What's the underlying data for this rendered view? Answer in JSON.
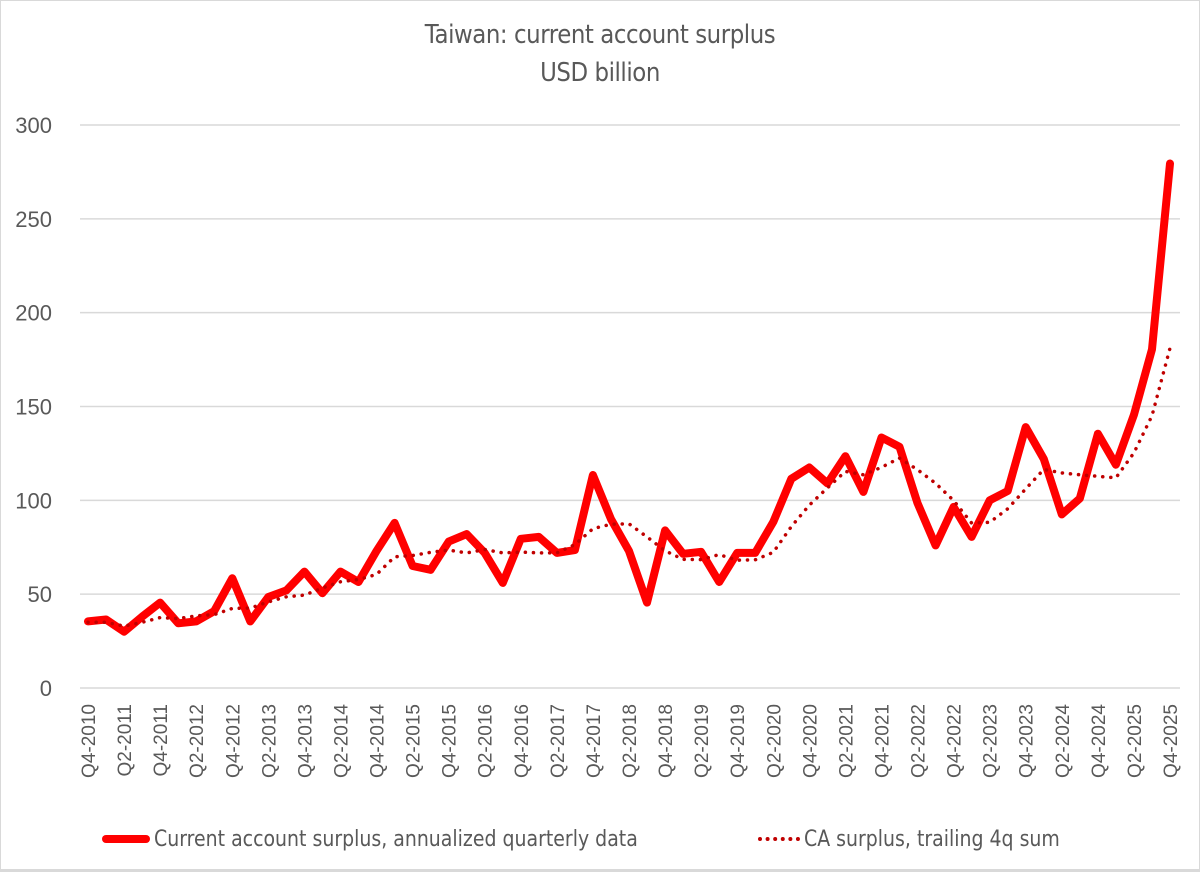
{
  "chart": {
    "title_line1": "Taiwan: current account surplus",
    "title_line2": "USD billion",
    "y_ticks": [
      "0",
      "50",
      "100",
      "150",
      "200",
      "250",
      "300"
    ],
    "x_tick_labels": [
      "Q4-2010",
      "Q2-2011",
      "Q4-2011",
      "Q2-2012",
      "Q4-2012",
      "Q2-2013",
      "Q4-2013",
      "Q2-2014",
      "Q4-2014",
      "Q2-2015",
      "Q4-2015",
      "Q2-2016",
      "Q4-2016",
      "Q2-2017",
      "Q4-2017",
      "Q2-2018",
      "Q4-2018",
      "Q2-2019",
      "Q4-2019",
      "Q2-2020",
      "Q4-2020",
      "Q2-2021",
      "Q4-2021",
      "Q2-2022",
      "Q4-2022",
      "Q2-2023",
      "Q4-2023",
      "Q2-2024",
      "Q4-2024",
      "Q2-2025",
      "Q4-2025"
    ],
    "legend": {
      "series1": "Current account surplus, annualized quarterly data",
      "series2": "CA surplus, trailing 4q sum"
    },
    "colors": {
      "series1": "#ff0000",
      "series2": "#c00000",
      "grid": "#d9d9d9",
      "text": "#595959"
    }
  },
  "chart_data": {
    "type": "line",
    "title": "Taiwan: current account surplus\nUSD billion",
    "xlabel": "",
    "ylabel": "",
    "ylim": [
      0,
      300
    ],
    "yticks": [
      0,
      50,
      100,
      150,
      200,
      250,
      300
    ],
    "grid": true,
    "legend_position": "bottom",
    "x": [
      "Q4-2010",
      "Q1-2011",
      "Q2-2011",
      "Q3-2011",
      "Q4-2011",
      "Q1-2012",
      "Q2-2012",
      "Q3-2012",
      "Q4-2012",
      "Q1-2013",
      "Q2-2013",
      "Q3-2013",
      "Q4-2013",
      "Q1-2014",
      "Q2-2014",
      "Q3-2014",
      "Q4-2014",
      "Q1-2015",
      "Q2-2015",
      "Q3-2015",
      "Q4-2015",
      "Q1-2016",
      "Q2-2016",
      "Q3-2016",
      "Q4-2016",
      "Q1-2017",
      "Q2-2017",
      "Q3-2017",
      "Q4-2017",
      "Q1-2018",
      "Q2-2018",
      "Q3-2018",
      "Q4-2018",
      "Q1-2019",
      "Q2-2019",
      "Q3-2019",
      "Q4-2019",
      "Q1-2020",
      "Q2-2020",
      "Q3-2020",
      "Q4-2020",
      "Q1-2021",
      "Q2-2021",
      "Q3-2021",
      "Q4-2021",
      "Q1-2022",
      "Q2-2022",
      "Q3-2022",
      "Q4-2022",
      "Q1-2023",
      "Q2-2023",
      "Q3-2023",
      "Q4-2023",
      "Q1-2024",
      "Q2-2024",
      "Q3-2024",
      "Q4-2024",
      "Q1-2025",
      "Q2-2025",
      "Q3-2025",
      "Q4-2025"
    ],
    "series": [
      {
        "name": "Current account surplus, annualized quarterly data",
        "style": "solid",
        "values": [
          35.5,
          36.5,
          30,
          38,
          45.5,
          34.5,
          35.5,
          41,
          58.5,
          35.5,
          48.5,
          52,
          62,
          50.5,
          62,
          56.5,
          73,
          88,
          65,
          63,
          78,
          82,
          72,
          56,
          79.5,
          80.5,
          72,
          73.5,
          113.5,
          90,
          73,
          45.5,
          84,
          71.5,
          72.5,
          56.5,
          72,
          72,
          88.5,
          111.5,
          117.5,
          109,
          123.5,
          104.5,
          133.5,
          128.5,
          98.5,
          76,
          96.5,
          80.5,
          100,
          105,
          139,
          122,
          92.5,
          101,
          135.5,
          119,
          145.5,
          180.5,
          279.5
        ]
      },
      {
        "name": "CA surplus, trailing 4q sum",
        "style": "dotted",
        "values": [
          35,
          35,
          33,
          35,
          37.5,
          37,
          38.4,
          39.1,
          42.4,
          42.6,
          45.9,
          48.6,
          49.5,
          53.3,
          56.6,
          57.8,
          60.5,
          69.9,
          70.6,
          72.3,
          73.5,
          72,
          73.8,
          72,
          72.4,
          72,
          72,
          76.4,
          84.9,
          87.3,
          87.5,
          80.5,
          73.1,
          68.5,
          68.4,
          71.1,
          68.1,
          68.3,
          72.3,
          86,
          97.4,
          106.6,
          115.4,
          113.6,
          117.6,
          122.5,
          116.3,
          109.1,
          99.9,
          87.9,
          88.3,
          95.5,
          106.1,
          116.5,
          114.6,
          113.6,
          112.8,
          112,
          125.3,
          145.1,
          181.1
        ]
      }
    ]
  }
}
